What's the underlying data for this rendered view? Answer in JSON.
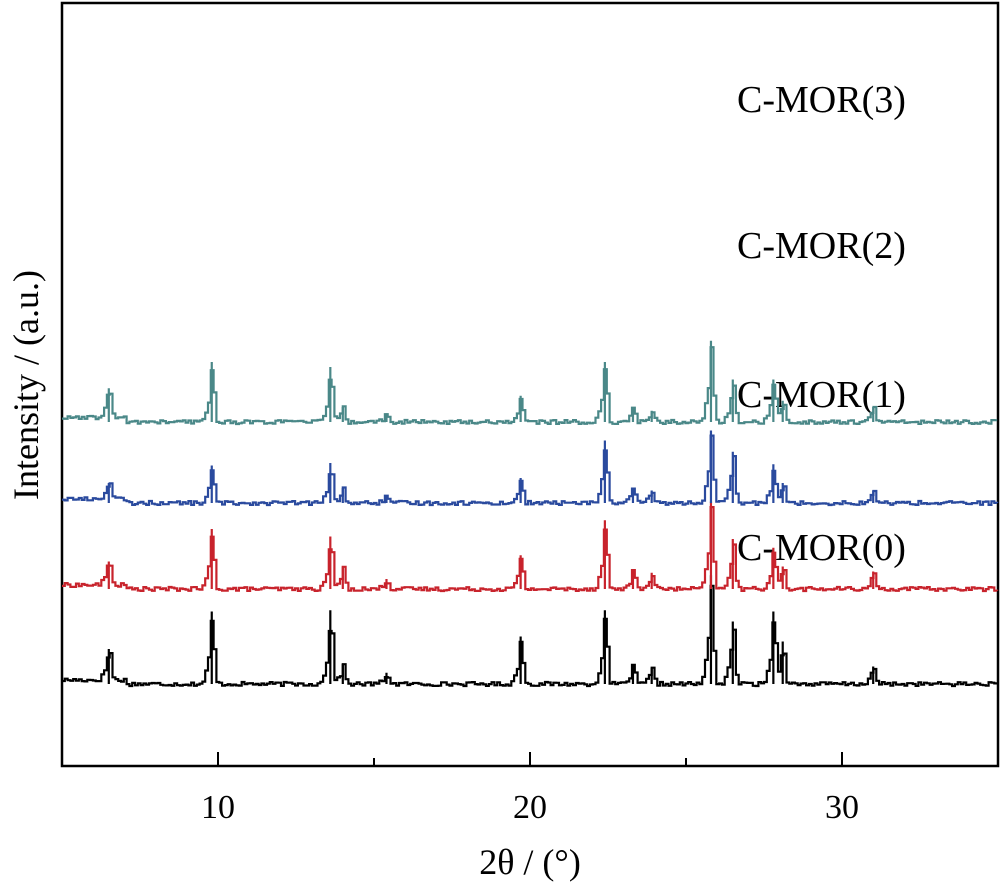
{
  "chart_data": {
    "type": "line",
    "xlabel": "2θ / (°)",
    "ylabel": "Intensity / (a.u.)",
    "xlim": [
      5,
      35
    ],
    "x_ticks": [
      10,
      20,
      30
    ],
    "y_ticks": "none",
    "grid": false,
    "legend": "labels placed beside each trace, top-right",
    "series": [
      {
        "name": "C-MOR(0)",
        "color": "#000000",
        "baseline": 0,
        "peaks": [
          [
            6.5,
            28
          ],
          [
            9.8,
            58
          ],
          [
            13.6,
            59
          ],
          [
            14.0,
            16
          ],
          [
            15.4,
            9
          ],
          [
            19.7,
            38
          ],
          [
            22.4,
            59
          ],
          [
            23.3,
            16
          ],
          [
            23.9,
            13
          ],
          [
            25.8,
            87
          ],
          [
            26.5,
            50
          ],
          [
            27.8,
            58
          ],
          [
            28.1,
            34
          ],
          [
            31.0,
            14
          ]
        ]
      },
      {
        "name": "C-MOR(1)",
        "color": "#c8232c",
        "baseline": 95,
        "peaks": [
          [
            6.5,
            22
          ],
          [
            9.8,
            48
          ],
          [
            13.6,
            42
          ],
          [
            14.0,
            18
          ],
          [
            15.4,
            8
          ],
          [
            19.7,
            27
          ],
          [
            22.4,
            55
          ],
          [
            23.3,
            16
          ],
          [
            23.9,
            13
          ],
          [
            25.8,
            70
          ],
          [
            26.5,
            40
          ],
          [
            27.8,
            33
          ],
          [
            28.1,
            18
          ],
          [
            31.0,
            14
          ]
        ]
      },
      {
        "name": "C-MOR(2)",
        "color": "#2a4a9e",
        "baseline": 181,
        "peaks": [
          [
            6.5,
            16
          ],
          [
            9.8,
            30
          ],
          [
            13.6,
            32
          ],
          [
            14.0,
            12
          ],
          [
            15.4,
            6
          ],
          [
            19.7,
            20
          ],
          [
            22.4,
            50
          ],
          [
            23.3,
            12
          ],
          [
            23.9,
            10
          ],
          [
            25.8,
            58
          ],
          [
            26.5,
            41
          ],
          [
            27.8,
            31
          ],
          [
            28.1,
            16
          ],
          [
            31.0,
            10
          ]
        ]
      },
      {
        "name": "C-MOR(3)",
        "color": "#4a8888",
        "baseline": 262,
        "peaks": [
          [
            6.5,
            27
          ],
          [
            9.8,
            48
          ],
          [
            13.6,
            44
          ],
          [
            14.0,
            12
          ],
          [
            15.4,
            7
          ],
          [
            19.7,
            21
          ],
          [
            22.4,
            48
          ],
          [
            23.3,
            12
          ],
          [
            23.9,
            9
          ],
          [
            25.8,
            65
          ],
          [
            26.5,
            34
          ],
          [
            27.8,
            34
          ],
          [
            28.1,
            17
          ],
          [
            31.0,
            12
          ]
        ]
      }
    ]
  }
}
